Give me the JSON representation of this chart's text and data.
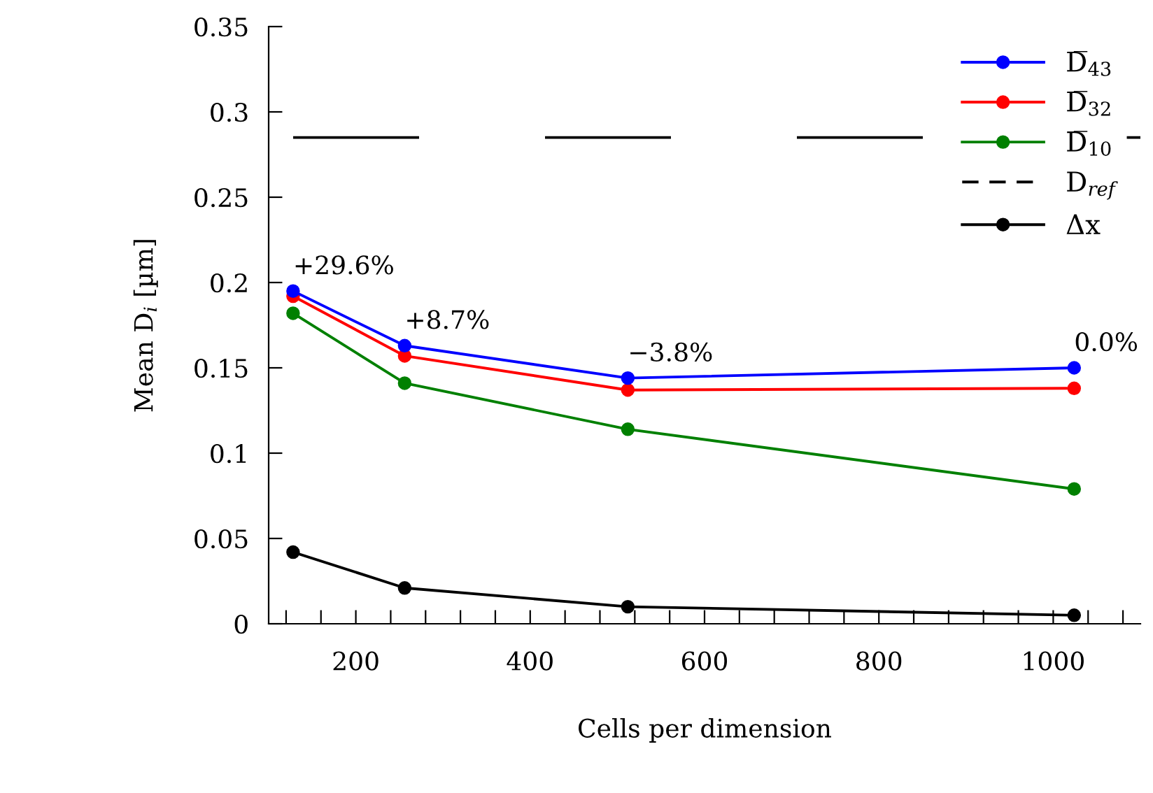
{
  "chart_data": {
    "type": "line",
    "xlabel": "Cells per dimension",
    "ylabel": "Mean D$_{i}$ [µm]",
    "x": [
      128,
      256,
      512,
      1024
    ],
    "series": [
      {
        "name": "D̅$_{43}$",
        "color": "#0000ff",
        "values": [
          0.195,
          0.163,
          0.144,
          0.15
        ]
      },
      {
        "name": "D̅$_{32}$",
        "color": "#ff0000",
        "values": [
          0.192,
          0.157,
          0.137,
          0.138
        ]
      },
      {
        "name": "D̅$_{10}$",
        "color": "#008000",
        "values": [
          0.182,
          0.141,
          0.114,
          0.079
        ]
      },
      {
        "name": "Δx",
        "color": "#000000",
        "values": [
          0.042,
          0.021,
          0.01,
          0.005
        ]
      }
    ],
    "ref_lines": [
      {
        "axis": "y",
        "value": 0.285,
        "label": "D$_{ref}$",
        "color": "#000000",
        "line_style": "dashed"
      }
    ],
    "annotations": [
      {
        "text": "+29.6%",
        "x": 128,
        "y": 0.195
      },
      {
        "text": "+8.7%",
        "x": 256,
        "y": 0.163
      },
      {
        "text": "−3.8%",
        "x": 512,
        "y": 0.144
      },
      {
        "text": "0.0%",
        "x": 1024,
        "y": 0.15
      }
    ],
    "xlim": [
      100,
      1100
    ],
    "xticks": [
      {
        "value": 120,
        "label": null
      },
      {
        "value": 160,
        "label": null
      },
      200,
      {
        "value": 240,
        "label": null
      },
      {
        "value": 280,
        "label": null
      },
      {
        "value": 320,
        "label": null
      },
      {
        "value": 360,
        "label": null
      },
      400,
      {
        "value": 440,
        "label": null
      },
      {
        "value": 480,
        "label": null
      },
      {
        "value": 520,
        "label": null
      },
      {
        "value": 560,
        "label": null
      },
      600,
      {
        "value": 640,
        "label": null
      },
      {
        "value": 680,
        "label": null
      },
      {
        "value": 720,
        "label": null
      },
      {
        "value": 760,
        "label": null
      },
      800,
      {
        "value": 840,
        "label": null
      },
      {
        "value": 880,
        "label": null
      },
      {
        "value": 920,
        "label": null
      },
      {
        "value": 960,
        "label": null
      },
      1000,
      {
        "value": 1040,
        "label": null
      },
      {
        "value": 1080,
        "label": null
      }
    ],
    "ylim": [
      0,
      0.35
    ],
    "yticks": [
      0,
      0.05,
      0.1,
      0.15,
      0.2,
      0.25,
      0.3,
      0.35
    ],
    "marker": "circle",
    "line_style": "solid",
    "grid": false,
    "legend": "top right"
  }
}
